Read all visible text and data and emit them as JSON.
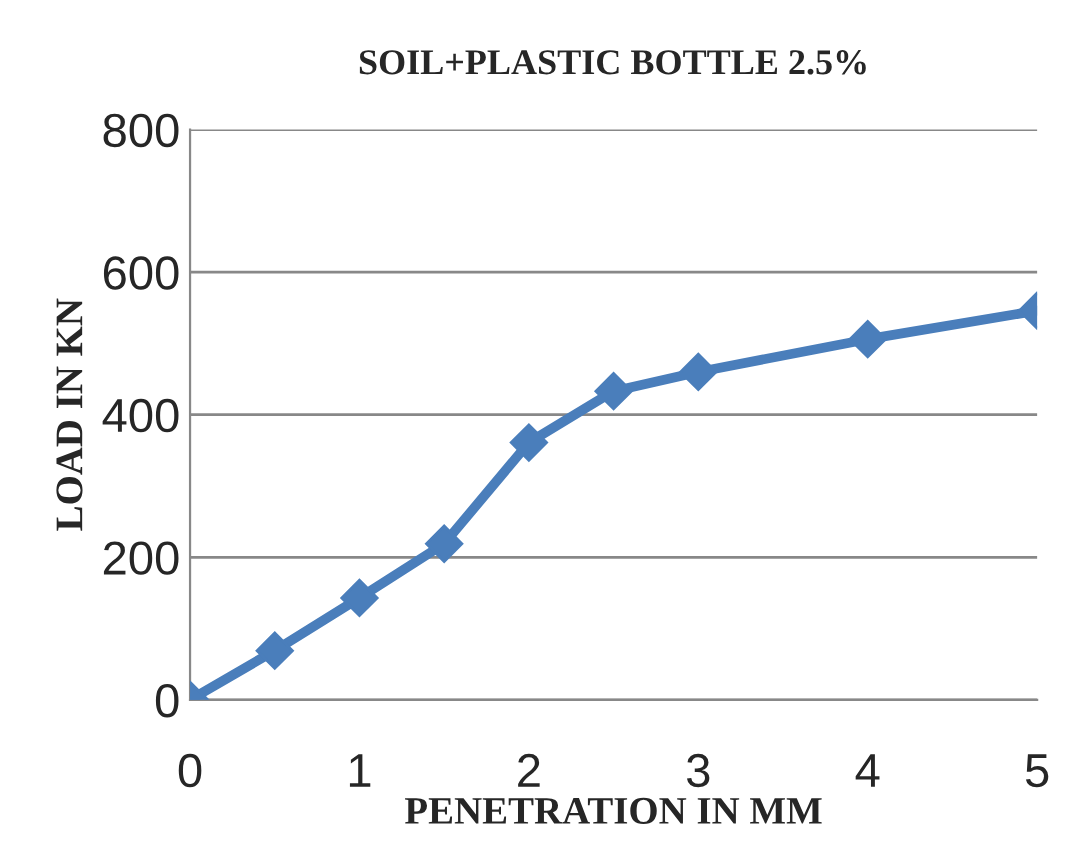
{
  "chart_data": {
    "type": "line",
    "title": "SOIL+PLASTIC BOTTLE 2.5%",
    "xlabel": "PENETRATION IN MM",
    "ylabel": "LOAD IN KN",
    "x": [
      0,
      0.5,
      1,
      1.5,
      2,
      2.5,
      3,
      4,
      5
    ],
    "series": [
      {
        "color": "#4a7ebb",
        "values": [
          0,
          69,
          143,
          219,
          361,
          433,
          460,
          506,
          546
        ]
      }
    ],
    "xlim": [
      0,
      5
    ],
    "xticks": [
      0,
      1,
      2,
      3,
      4,
      5
    ],
    "ylim": [
      0,
      800
    ],
    "yticks": [
      0,
      200,
      400,
      600,
      800
    ],
    "grid": "y",
    "marker": "diamond",
    "line_style": "solid"
  }
}
